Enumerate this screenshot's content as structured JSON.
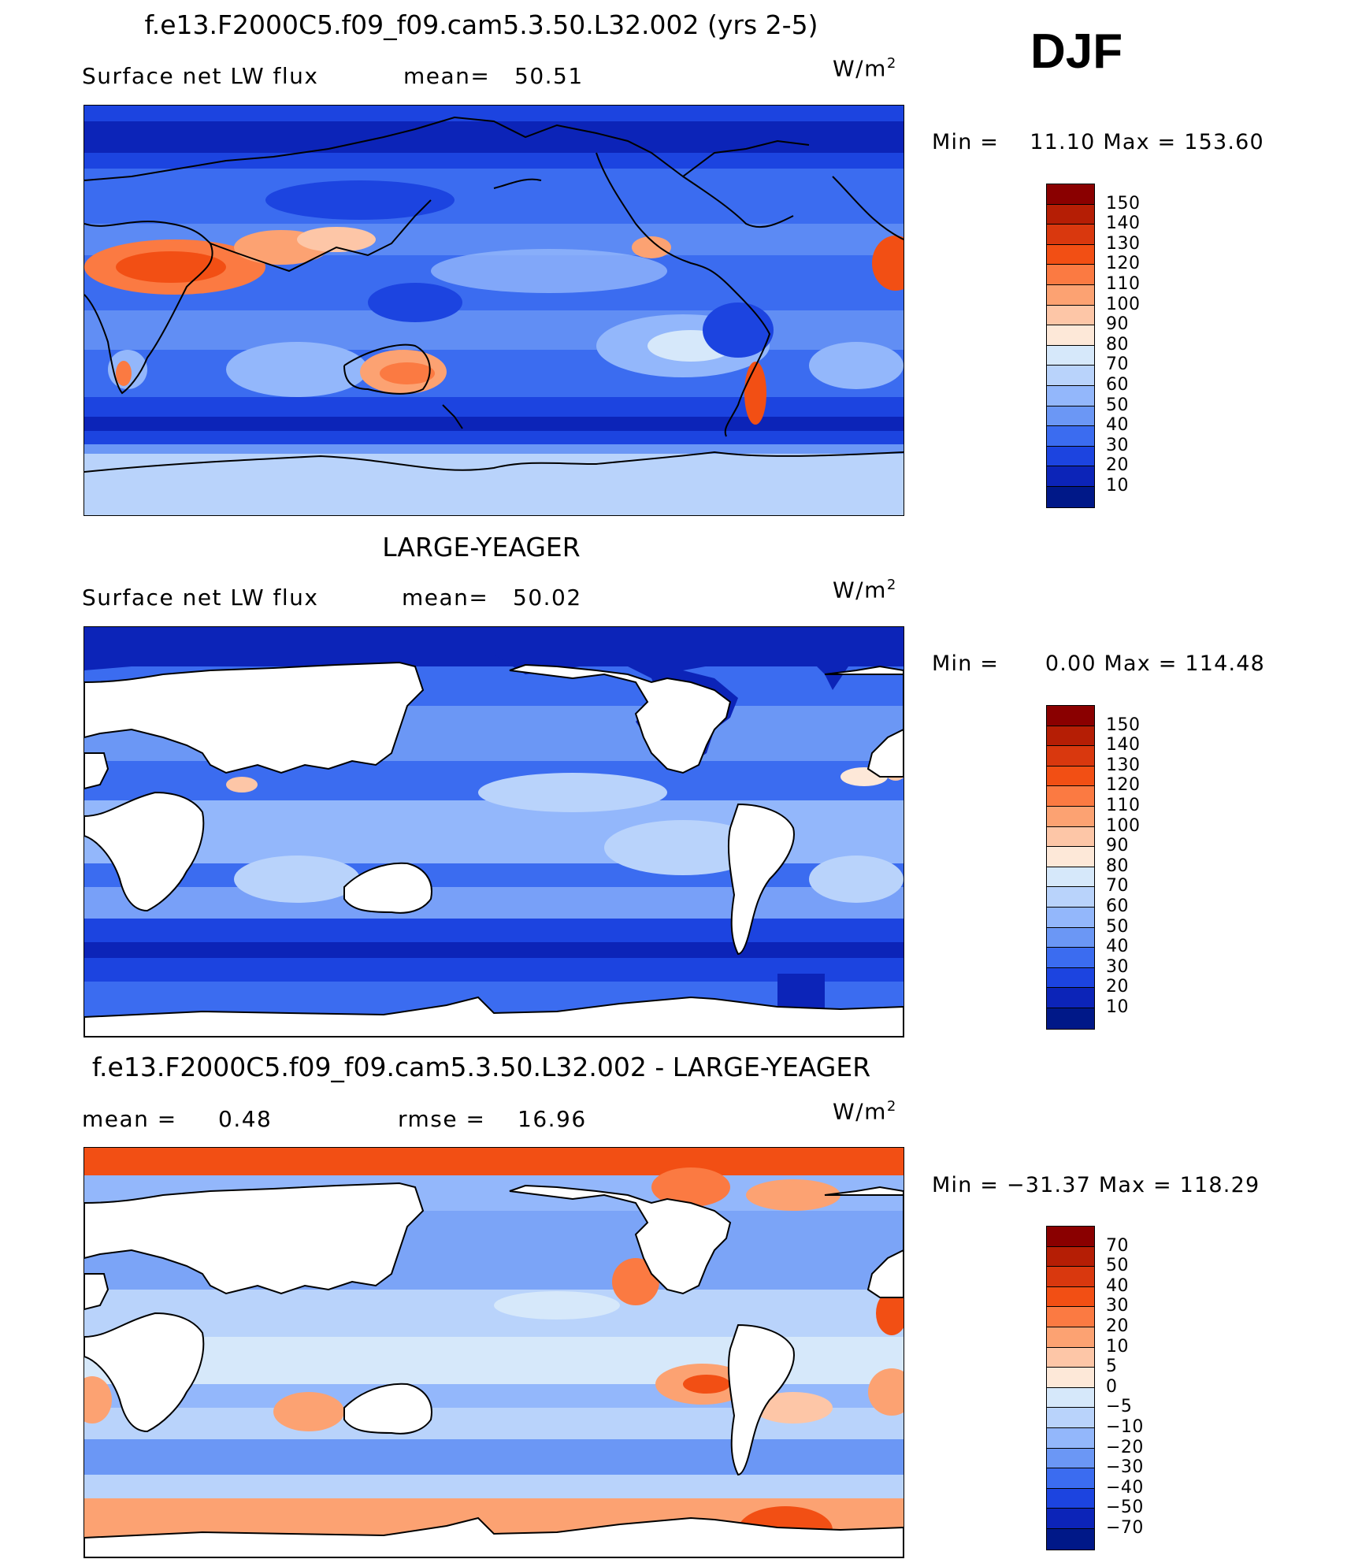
{
  "season": "DJF",
  "panels": [
    {
      "title": "f.e13.F2000C5.f09_f09.cam5.3.50.L32.002 (yrs 2-5)",
      "left_label": "Surface net LW flux",
      "stat_label": "mean=",
      "stat_value": "50.51",
      "units": "W/m",
      "units_sup": "2",
      "min_label": "Min  =",
      "min_value": "11.10",
      "max_label": "Max  =",
      "max_value": "153.60",
      "colorbar_levels": [
        "150",
        "140",
        "130",
        "120",
        "110",
        "100",
        "90",
        "80",
        "70",
        "60",
        "50",
        "40",
        "30",
        "20",
        "10"
      ],
      "colorbar_colors": [
        "#8a0000",
        "#b51e05",
        "#d9380e",
        "#f24f14",
        "#fb7a42",
        "#fca272",
        "#fdc6a7",
        "#fde8d8",
        "#d6e8fa",
        "#b9d3fb",
        "#93b7fb",
        "#6b97f5",
        "#3b6cf0",
        "#1c44e0",
        "#0c24b8",
        "#001888"
      ],
      "land_masked": false
    },
    {
      "title": "LARGE-YEAGER",
      "left_label": "Surface net LW flux",
      "stat_label": "mean=",
      "stat_value": "50.02",
      "units": "W/m",
      "units_sup": "2",
      "min_label": "Min  =",
      "min_value": "0.00",
      "max_label": "Max  =",
      "max_value": "114.48",
      "colorbar_levels": [
        "150",
        "140",
        "130",
        "120",
        "110",
        "100",
        "90",
        "80",
        "70",
        "60",
        "50",
        "40",
        "30",
        "20",
        "10"
      ],
      "colorbar_colors": [
        "#8a0000",
        "#b51e05",
        "#d9380e",
        "#f24f14",
        "#fb7a42",
        "#fca272",
        "#fdc6a7",
        "#fde8d8",
        "#d6e8fa",
        "#b9d3fb",
        "#93b7fb",
        "#6b97f5",
        "#3b6cf0",
        "#1c44e0",
        "#0c24b8",
        "#001888"
      ],
      "land_masked": true
    },
    {
      "title": "f.e13.F2000C5.f09_f09.cam5.3.50.L32.002 - LARGE-YEAGER",
      "left_label": "mean  =",
      "left_value": "0.48",
      "stat_label": "rmse  =",
      "stat_value": "16.96",
      "units": "W/m",
      "units_sup": "2",
      "min_label": "Min  =",
      "min_value": "−31.37",
      "max_label": "Max  =",
      "max_value": "118.29",
      "colorbar_levels": [
        "70",
        "50",
        "40",
        "30",
        "20",
        "10",
        "5",
        "0",
        "−5",
        "−10",
        "−20",
        "−30",
        "−40",
        "−50",
        "−70"
      ],
      "colorbar_colors": [
        "#8a0000",
        "#b51e05",
        "#d9380e",
        "#f24f14",
        "#fb7a42",
        "#fca272",
        "#fdc6a7",
        "#fde8d8",
        "#d6e8fa",
        "#b9d3fb",
        "#93b7fb",
        "#6b97f5",
        "#3b6cf0",
        "#1c44e0",
        "#0c24b8",
        "#001888"
      ],
      "land_masked": true
    }
  ]
}
